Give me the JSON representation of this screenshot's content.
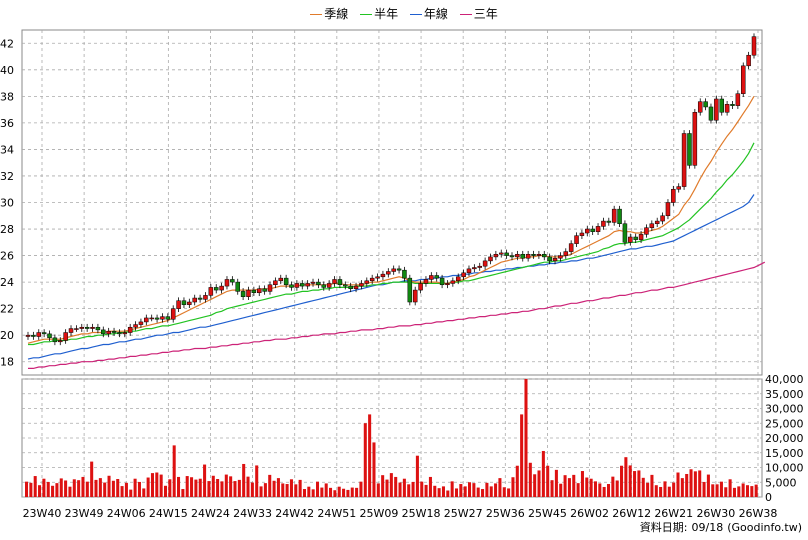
{
  "chart_data": [
    {
      "type": "candlestick",
      "legend": [
        {
          "name": "季線",
          "color": "#e07b2b"
        },
        {
          "name": "半年",
          "color": "#22c322"
        },
        {
          "name": "年線",
          "color": "#1f5fcf"
        },
        {
          "name": "三年",
          "color": "#cc2277"
        }
      ],
      "ylim": [
        17,
        43
      ],
      "yticks": [
        18,
        20,
        22,
        24,
        26,
        28,
        30,
        32,
        34,
        36,
        38,
        40,
        42
      ],
      "xticks": [
        "23W40",
        "23W49",
        "24W06",
        "24W15",
        "24W24",
        "24W33",
        "24W42",
        "24W51",
        "25W09",
        "25W18",
        "25W27",
        "25W36",
        "25W45",
        "26W02",
        "26W12",
        "26W21",
        "26W30",
        "26W38"
      ],
      "close": [
        20.0,
        19.9,
        20.2,
        20.1,
        19.8,
        19.5,
        19.6,
        20.2,
        20.5,
        20.5,
        20.6,
        20.5,
        20.6,
        20.4,
        20.1,
        20.3,
        20.2,
        20.1,
        20.2,
        20.6,
        20.8,
        21.0,
        21.3,
        21.3,
        21.2,
        21.4,
        21.2,
        22.0,
        22.6,
        22.3,
        22.5,
        22.8,
        22.7,
        23.0,
        23.6,
        23.4,
        23.7,
        24.2,
        24.0,
        23.3,
        22.9,
        23.4,
        23.2,
        23.5,
        23.3,
        23.8,
        24.1,
        24.3,
        23.8,
        23.6,
        23.9,
        23.7,
        23.9,
        24.0,
        23.8,
        23.6,
        23.9,
        24.2,
        23.8,
        23.7,
        23.5,
        23.7,
        23.9,
        24.1,
        24.3,
        24.4,
        24.6,
        24.8,
        25.0,
        24.9,
        24.3,
        22.5,
        23.4,
        23.9,
        24.2,
        24.5,
        24.3,
        23.8,
        23.9,
        24.1,
        24.4,
        24.7,
        25.0,
        25.1,
        25.2,
        25.6,
        25.9,
        26.1,
        26.2,
        26.0,
        25.9,
        26.1,
        25.8,
        26.1,
        26.0,
        26.1,
        25.9,
        25.6,
        25.8,
        26.0,
        26.3,
        26.9,
        27.5,
        27.7,
        28.0,
        27.8,
        28.2,
        28.6,
        28.5,
        29.5,
        28.4,
        27.0,
        27.4,
        27.2,
        27.6,
        28.1,
        28.4,
        28.6,
        29.0,
        30.0,
        31.0,
        31.2,
        35.2,
        32.8,
        36.8,
        37.6,
        37.2,
        36.2,
        37.8,
        36.8,
        37.4,
        37.3,
        38.2,
        40.3,
        41.1,
        42.5
      ],
      "ma_quarter": [
        19.4,
        19.5,
        19.6,
        19.7,
        19.7,
        19.7,
        19.7,
        19.8,
        19.9,
        20.0,
        20.1,
        20.1,
        20.2,
        20.2,
        20.2,
        20.3,
        20.3,
        20.3,
        20.3,
        20.4,
        20.5,
        20.6,
        20.7,
        20.8,
        20.9,
        21.0,
        21.1,
        21.3,
        21.5,
        21.7,
        21.9,
        22.1,
        22.3,
        22.5,
        22.7,
        22.9,
        23.1,
        23.3,
        23.4,
        23.4,
        23.4,
        23.4,
        23.4,
        23.5,
        23.5,
        23.5,
        23.6,
        23.7,
        23.7,
        23.7,
        23.7,
        23.8,
        23.8,
        23.8,
        23.8,
        23.8,
        23.8,
        23.9,
        23.9,
        23.8,
        23.8,
        23.8,
        23.8,
        23.9,
        24.0,
        24.0,
        24.1,
        24.2,
        24.3,
        24.4,
        24.3,
        24.1,
        24.0,
        24.0,
        24.0,
        24.0,
        24.0,
        23.9,
        23.9,
        24.0,
        24.1,
        24.2,
        24.4,
        24.5,
        24.7,
        24.9,
        25.1,
        25.3,
        25.5,
        25.6,
        25.7,
        25.8,
        25.8,
        25.9,
        25.9,
        26.0,
        26.0,
        25.9,
        25.9,
        25.9,
        26.0,
        26.1,
        26.3,
        26.5,
        26.7,
        26.9,
        27.1,
        27.3,
        27.5,
        27.8,
        27.9,
        27.8,
        27.8,
        27.7,
        27.7,
        27.8,
        27.9,
        28.0,
        28.2,
        28.5,
        28.8,
        29.1,
        29.8,
        30.3,
        31.0,
        31.8,
        32.5,
        33.1,
        33.8,
        34.4,
        35.0,
        35.5,
        36.1,
        36.7,
        37.3,
        38.0
      ],
      "ma_half": [
        19.3,
        19.3,
        19.4,
        19.5,
        19.5,
        19.6,
        19.6,
        19.6,
        19.7,
        19.7,
        19.8,
        19.9,
        19.9,
        20.0,
        20.0,
        20.1,
        20.1,
        20.2,
        20.2,
        20.3,
        20.3,
        20.4,
        20.5,
        20.5,
        20.6,
        20.7,
        20.7,
        20.8,
        20.9,
        21.0,
        21.1,
        21.2,
        21.3,
        21.4,
        21.5,
        21.7,
        21.8,
        22.0,
        22.1,
        22.2,
        22.3,
        22.4,
        22.5,
        22.6,
        22.7,
        22.8,
        22.9,
        23.0,
        23.1,
        23.1,
        23.2,
        23.3,
        23.3,
        23.4,
        23.4,
        23.5,
        23.5,
        23.6,
        23.6,
        23.6,
        23.6,
        23.7,
        23.7,
        23.7,
        23.8,
        23.8,
        23.9,
        23.9,
        24.0,
        24.0,
        24.0,
        24.0,
        23.9,
        23.9,
        23.9,
        23.9,
        23.9,
        23.9,
        23.9,
        24.0,
        24.0,
        24.1,
        24.1,
        24.2,
        24.3,
        24.4,
        24.5,
        24.6,
        24.7,
        24.8,
        24.9,
        25.0,
        25.1,
        25.2,
        25.3,
        25.4,
        25.5,
        25.5,
        25.6,
        25.6,
        25.7,
        25.8,
        25.9,
        26.0,
        26.1,
        26.2,
        26.3,
        26.5,
        26.6,
        26.8,
        26.9,
        26.9,
        27.0,
        27.0,
        27.1,
        27.2,
        27.3,
        27.4,
        27.5,
        27.7,
        27.9,
        28.1,
        28.4,
        28.7,
        29.1,
        29.5,
        29.9,
        30.3,
        30.8,
        31.2,
        31.7,
        32.1,
        32.6,
        33.1,
        33.7,
        34.5
      ],
      "ma_year": [
        18.2,
        18.3,
        18.3,
        18.4,
        18.5,
        18.6,
        18.6,
        18.7,
        18.8,
        18.9,
        19.0,
        19.0,
        19.1,
        19.2,
        19.3,
        19.3,
        19.4,
        19.5,
        19.5,
        19.6,
        19.7,
        19.7,
        19.8,
        19.9,
        20.0,
        20.0,
        20.1,
        20.2,
        20.2,
        20.3,
        20.4,
        20.5,
        20.6,
        20.6,
        20.7,
        20.8,
        20.9,
        21.0,
        21.1,
        21.2,
        21.3,
        21.4,
        21.5,
        21.6,
        21.7,
        21.8,
        21.9,
        22.0,
        22.1,
        22.2,
        22.3,
        22.4,
        22.5,
        22.6,
        22.7,
        22.8,
        22.9,
        23.0,
        23.1,
        23.2,
        23.3,
        23.4,
        23.5,
        23.6,
        23.7,
        23.8,
        23.8,
        23.9,
        24.0,
        24.0,
        24.1,
        24.1,
        24.1,
        24.2,
        24.2,
        24.3,
        24.3,
        24.4,
        24.4,
        24.5,
        24.5,
        24.6,
        24.6,
        24.7,
        24.7,
        24.8,
        24.8,
        24.9,
        24.9,
        25.0,
        25.0,
        25.1,
        25.1,
        25.2,
        25.2,
        25.3,
        25.3,
        25.4,
        25.4,
        25.5,
        25.5,
        25.6,
        25.6,
        25.7,
        25.8,
        25.8,
        25.9,
        26.0,
        26.1,
        26.2,
        26.3,
        26.4,
        26.5,
        26.5,
        26.6,
        26.7,
        26.7,
        26.8,
        26.9,
        27.0,
        27.1,
        27.3,
        27.5,
        27.7,
        27.9,
        28.1,
        28.3,
        28.5,
        28.7,
        28.9,
        29.1,
        29.3,
        29.5,
        29.7,
        30.0,
        30.6
      ],
      "ma_3year": [
        17.5,
        17.5,
        17.6,
        17.6,
        17.7,
        17.7,
        17.8,
        17.8,
        17.9,
        17.9,
        18.0,
        18.0,
        18.0,
        18.1,
        18.1,
        18.2,
        18.2,
        18.3,
        18.3,
        18.4,
        18.4,
        18.5,
        18.5,
        18.6,
        18.6,
        18.7,
        18.7,
        18.8,
        18.8,
        18.9,
        18.9,
        19.0,
        19.0,
        19.0,
        19.1,
        19.1,
        19.2,
        19.2,
        19.3,
        19.3,
        19.4,
        19.4,
        19.5,
        19.5,
        19.6,
        19.6,
        19.7,
        19.7,
        19.7,
        19.8,
        19.8,
        19.9,
        19.9,
        20.0,
        20.0,
        20.1,
        20.1,
        20.1,
        20.2,
        20.2,
        20.3,
        20.3,
        20.4,
        20.4,
        20.4,
        20.5,
        20.5,
        20.6,
        20.6,
        20.7,
        20.7,
        20.7,
        20.8,
        20.8,
        20.9,
        20.9,
        21.0,
        21.0,
        21.1,
        21.1,
        21.2,
        21.2,
        21.3,
        21.3,
        21.4,
        21.4,
        21.5,
        21.5,
        21.6,
        21.6,
        21.7,
        21.7,
        21.8,
        21.8,
        21.9,
        22.0,
        22.0,
        22.1,
        22.2,
        22.2,
        22.3,
        22.4,
        22.4,
        22.5,
        22.6,
        22.6,
        22.7,
        22.8,
        22.8,
        22.9,
        23.0,
        23.0,
        23.1,
        23.2,
        23.2,
        23.3,
        23.4,
        23.4,
        23.5,
        23.6,
        23.6,
        23.7,
        23.8,
        23.9,
        24.0,
        24.1,
        24.2,
        24.3,
        24.4,
        24.5,
        24.6,
        24.7,
        24.8,
        24.9,
        25.0,
        25.1,
        25.3,
        25.5
      ]
    },
    {
      "type": "bar",
      "ylim": [
        0,
        40000
      ],
      "yticks": [
        0,
        5000,
        10000,
        15000,
        20000,
        25000,
        30000,
        35000,
        40000
      ],
      "ytick_labels": [
        "0",
        "5,000",
        "10,000",
        "15,000",
        "20,000",
        "25,000",
        "30,000",
        "35,000",
        "40,000"
      ],
      "values": [
        5200,
        4800,
        7100,
        4000,
        6200,
        5100,
        3800,
        4700,
        6300,
        5600,
        3500,
        6000,
        5700,
        6800,
        5200,
        12000,
        5800,
        6400,
        4900,
        7200,
        5500,
        6100,
        3700,
        4800,
        2500,
        6200,
        5100,
        2900,
        6600,
        8100,
        8300,
        7600,
        3800,
        6000,
        17500,
        6800,
        2700,
        7100,
        6700,
        5900,
        6200,
        11000,
        5400,
        7200,
        6100,
        5300,
        7600,
        7000,
        5400,
        5800,
        11200,
        6900,
        4900,
        10700,
        3600,
        4700,
        7500,
        5500,
        6400,
        4600,
        4400,
        6000,
        4300,
        5800,
        2700,
        3500,
        2600,
        5200,
        3200,
        4600,
        3100,
        2300,
        3500,
        2800,
        2400,
        3200,
        3100,
        5200,
        25000,
        28000,
        18500,
        4600,
        7400,
        5900,
        8100,
        6800,
        4900,
        6200,
        4300,
        5100,
        14000,
        5200,
        4100,
        6800,
        3800,
        3000,
        3600,
        2200,
        5300,
        2900,
        4400,
        3600,
        5000,
        4700,
        3200,
        2700,
        4800,
        3600,
        4600,
        6400,
        3300,
        2900,
        6700,
        10600,
        28000,
        40000,
        11600,
        7700,
        9000,
        15600,
        10600,
        5700,
        9200,
        4500,
        7400,
        6400,
        7500,
        4700,
        8800,
        6600,
        6200,
        5300,
        4600,
        3400,
        4400,
        6900,
        5600,
        10600,
        13500,
        10700,
        8800,
        9000,
        6500,
        4800,
        7500,
        4000,
        3400,
        5300,
        3500,
        4900,
        8300,
        6400,
        7800,
        9400,
        8700,
        9000,
        5100,
        7600,
        4300,
        4300,
        5200,
        3300,
        6000,
        3100,
        3600,
        4600,
        4000,
        3700,
        4200
      ]
    }
  ],
  "footer": {
    "label": "資料日期:",
    "date": "09/18",
    "source": "(Goodinfo.tw)"
  }
}
